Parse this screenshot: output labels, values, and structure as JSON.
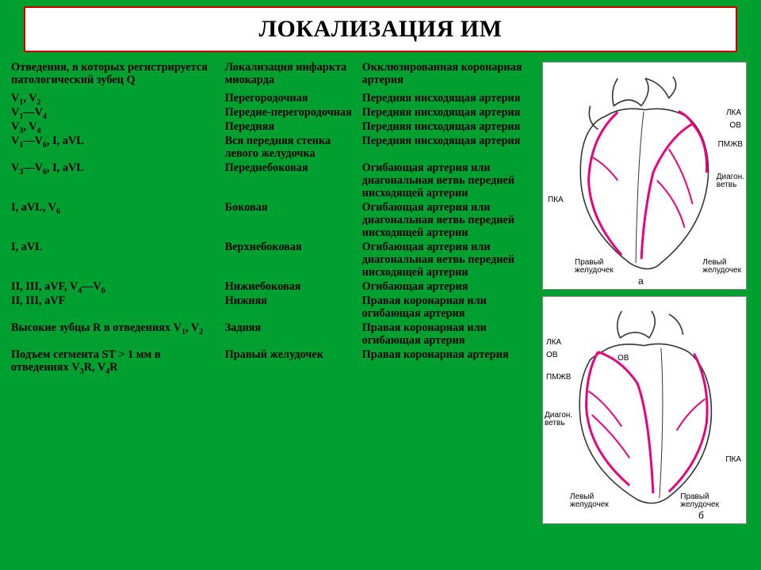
{
  "title": "ЛОКАЛИЗАЦИЯ ИМ",
  "headers": {
    "leads": "Отведения, в которых регистрируется патологический зубец Q",
    "localization": "Локализация инфаркта миокарда",
    "artery": "Окклюзированная коронарная артерия"
  },
  "rows": [
    {
      "leads_html": "V<sub>1</sub>, V<sub>2</sub>",
      "loc": "Перегородочная",
      "art": "Передняя нисходящая артерия"
    },
    {
      "leads_html": "V<sub>1</sub>—V<sub>4</sub>",
      "loc": "Передне-перегородочная",
      "art": "Передняя нисходящая артерия"
    },
    {
      "leads_html": "V<sub>3</sub>, V<sub>4</sub>",
      "loc": "Передняя",
      "art": "Передняя нисходящая артерия"
    },
    {
      "leads_html": "V<sub>1</sub>—V<sub>6</sub>, I, aVL",
      "loc": "Вся передняя стенка левого желудочка",
      "art": "Передняя нисходящая артерия"
    },
    {
      "leads_html": "V<sub>3</sub>—V<sub>6</sub>, I, aVL",
      "loc": "Переднебоковая",
      "art": "Огибающая артерия или диагональная ветвь передней нисходящей артерии"
    },
    {
      "leads_html": "I, aVL, V<sub>6</sub>",
      "loc": "Боковая",
      "art": "Огибающая артерия или диагональная ветвь передней нисходящей артерии"
    },
    {
      "leads_html": "I, aVL",
      "loc": "Верхнебоковая",
      "art": "Огибающая артерия или диагональная ветвь передней нисходящей артерии"
    },
    {
      "leads_html": "II, III, aVF, V<sub>4</sub>—V<sub>6</sub>",
      "loc": "Нижнебоковая",
      "art": "Огибающая артерия"
    },
    {
      "leads_html": "II, III, aVF",
      "loc": "Нижняя",
      "art": "Правая коронарная или огибающая артерия"
    },
    {
      "leads_html": "Высокие зубцы R в отведениях V<sub>1</sub>, V<sub>2</sub>",
      "loc": "Задняя",
      "art": "Правая коронарная или огибающая артерия"
    },
    {
      "leads_html": "Подъем сегмента ST > 1 мм в отведениях V<sub>3</sub>R, V<sub>4</sub>R",
      "loc": "Правый желудочек",
      "art": "Правая коронарная артерия"
    }
  ],
  "fig_common": {
    "heart_outline_stroke": "#333333",
    "heart_outline_width": 1.6,
    "artery_stroke": "#e6007e",
    "artery_width": 3.0,
    "artery_width_thin": 2.0
  },
  "fig_a": {
    "letter": "а",
    "labels": {
      "lka": "ЛКА",
      "ov": "ОВ",
      "pmzv": "ПМЖВ",
      "diag": "Диагон.\nветвь",
      "pka": "ПКА",
      "rv": "Правый\nжелудочек",
      "lv": "Левый\nжелудочек"
    }
  },
  "fig_b": {
    "letter": "б",
    "labels": {
      "lka": "ЛКА",
      "ov": "ОВ",
      "ov2": "ОВ",
      "pmzv": "ПМЖВ",
      "diag": "Диагон.\nветвь",
      "pka": "ПКА",
      "lv": "Левый\nжелудочек",
      "rv": "Правый\nжелудочек"
    }
  },
  "colors": {
    "background": "#00a030",
    "title_bg": "#ffffff",
    "title_border": "#cc0000",
    "text": "#000000"
  }
}
